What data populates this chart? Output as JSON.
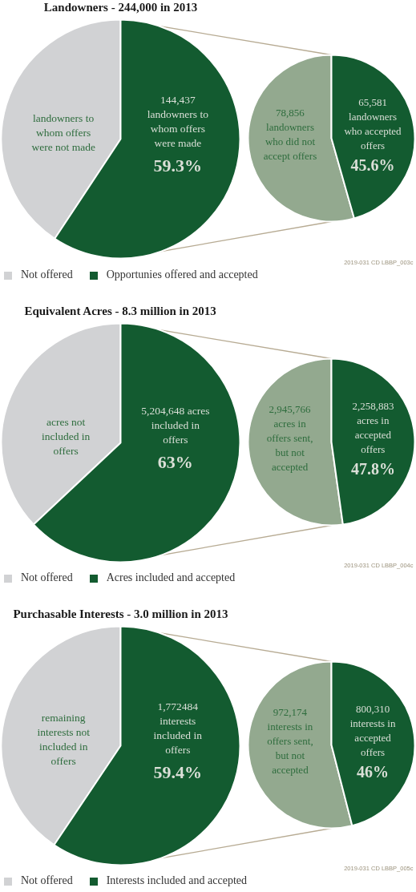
{
  "chart_data": [
    {
      "type": "pie",
      "title": "Landowners - 244,000 in 2013",
      "categories": [
        "Not offered",
        "Opportunies offered and accepted"
      ],
      "values": [
        40.7,
        59.3
      ],
      "colors": [
        "#d1d2d4",
        "#135b30"
      ],
      "value_labels": [
        null,
        "59.3%"
      ],
      "legend": "bottom",
      "annotations": [
        {
          "text": "landowners to whom offers were not made",
          "x": "Not offered"
        },
        {
          "text": "144,437 landowners to whom offers were made",
          "x": "Opportunies offered and accepted"
        },
        "2019-031 CD LBBP_003c"
      ]
    },
    {
      "type": "pie",
      "categories": [
        "78,856 landowners who did not accept offers",
        "65,581 landowners who accepted offers"
      ],
      "values": [
        54.4,
        45.6
      ],
      "colors": [
        "#93a98f",
        "#135b30"
      ],
      "value_labels": [
        null,
        "45.6%"
      ]
    },
    {
      "type": "pie",
      "title": "Equivalent Acres - 8.3 million in 2013",
      "categories": [
        "Not offered",
        "Acres included and accepted"
      ],
      "values": [
        37,
        63
      ],
      "colors": [
        "#d1d2d4",
        "#135b30"
      ],
      "value_labels": [
        null,
        "63%"
      ],
      "legend": "bottom",
      "annotations": [
        {
          "text": "acres not included in offers",
          "x": "Not offered"
        },
        {
          "text": "5,204,648 acres included in offers",
          "x": "Acres included and accepted"
        },
        "2019-031 CD LBBP_004c"
      ]
    },
    {
      "type": "pie",
      "categories": [
        "2,945,766 acres in offers sent, but not accepted",
        "2,258,883 acres in accepted offers"
      ],
      "values": [
        52.2,
        47.8
      ],
      "colors": [
        "#93a98f",
        "#135b30"
      ],
      "value_labels": [
        null,
        "47.8%"
      ]
    },
    {
      "type": "pie",
      "title": "Purchasable Interests - 3.0 million in 2013",
      "categories": [
        "Not offered",
        "Interests included and accepted"
      ],
      "values": [
        40.6,
        59.4
      ],
      "colors": [
        "#d1d2d4",
        "#135b30"
      ],
      "value_labels": [
        null,
        "59.4%"
      ],
      "legend": "bottom",
      "annotations": [
        {
          "text": "remaining interests not included in offers",
          "x": "Not offered"
        },
        {
          "text": "1,772484 interests included in offers",
          "x": "Interests included and accepted"
        },
        "2019-031 CD LBBP_005c"
      ]
    },
    {
      "type": "pie",
      "categories": [
        "972,174 interests in offers sent, but not accepted",
        "800,310 interests in accepted offers"
      ],
      "values": [
        54,
        46
      ],
      "colors": [
        "#93a98f",
        "#135b30"
      ],
      "value_labels": [
        null,
        "46%"
      ]
    }
  ]
}
